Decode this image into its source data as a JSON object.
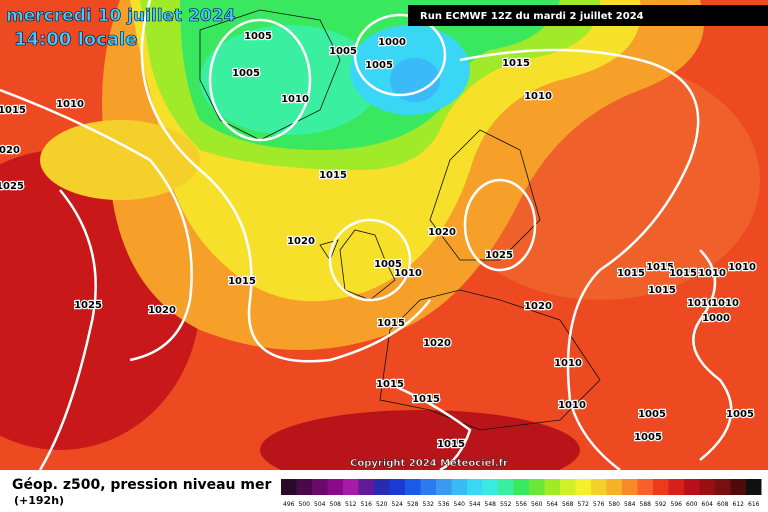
{
  "header": {
    "title": "mercredi 10 juillet 2024",
    "subtitle": "14:00 locale",
    "run": "Run ECMWF 12Z du mardi 2 juillet 2024"
  },
  "map": {
    "isobar_labels": [
      "1005",
      "1005",
      "1000",
      "1005",
      "1005",
      "1015",
      "1010",
      "1010",
      "1010",
      "1015",
      "1020",
      "1025",
      "1015",
      "1020",
      "1020",
      "1025",
      "1005",
      "1010",
      "1015",
      "1025",
      "1020",
      "1015",
      "1020",
      "1020",
      "1015",
      "1015",
      "1015",
      "1010",
      "1010",
      "1015",
      "1010",
      "1010",
      "1000",
      "1010",
      "1010",
      "1015",
      "1015",
      "1015",
      "1005",
      "1005",
      "1005"
    ],
    "copyright": "Copyright 2024 Meteociel.fr"
  },
  "footer": {
    "title": "Géop. z500, pression niveau mer",
    "lead": "(+192h)",
    "scale": [
      {
        "value": 496,
        "color": "#2a0a2a"
      },
      {
        "value": 500,
        "color": "#4a0a4a"
      },
      {
        "value": 504,
        "color": "#6a0a6a"
      },
      {
        "value": 508,
        "color": "#8a0a8a"
      },
      {
        "value": 512,
        "color": "#aa1aaa"
      },
      {
        "value": 516,
        "color": "#601a9a"
      },
      {
        "value": 520,
        "color": "#2a2ab0"
      },
      {
        "value": 524,
        "color": "#1a3ad0"
      },
      {
        "value": 528,
        "color": "#1a5ae6"
      },
      {
        "value": 532,
        "color": "#2a7af0"
      },
      {
        "value": 536,
        "color": "#3a9af0"
      },
      {
        "value": 540,
        "color": "#3abaf6"
      },
      {
        "value": 544,
        "color": "#3ad6f6"
      },
      {
        "value": 548,
        "color": "#3aeae0"
      },
      {
        "value": 552,
        "color": "#3af0a0"
      },
      {
        "value": 556,
        "color": "#3ae860"
      },
      {
        "value": 560,
        "color": "#6ae83a"
      },
      {
        "value": 564,
        "color": "#a0ea2a"
      },
      {
        "value": 568,
        "color": "#d0f02a"
      },
      {
        "value": 572,
        "color": "#f6f02a"
      },
      {
        "value": 576,
        "color": "#f6d02a"
      },
      {
        "value": 580,
        "color": "#f6b02a"
      },
      {
        "value": 584,
        "color": "#f68a2a"
      },
      {
        "value": 588,
        "color": "#f6602a"
      },
      {
        "value": 592,
        "color": "#ee3a1a"
      },
      {
        "value": 596,
        "color": "#d6201a"
      },
      {
        "value": 600,
        "color": "#b8101a"
      },
      {
        "value": 604,
        "color": "#981010"
      },
      {
        "value": 608,
        "color": "#781010"
      },
      {
        "value": 612,
        "color": "#500a0a"
      },
      {
        "value": 616,
        "color": "#101010"
      }
    ]
  }
}
